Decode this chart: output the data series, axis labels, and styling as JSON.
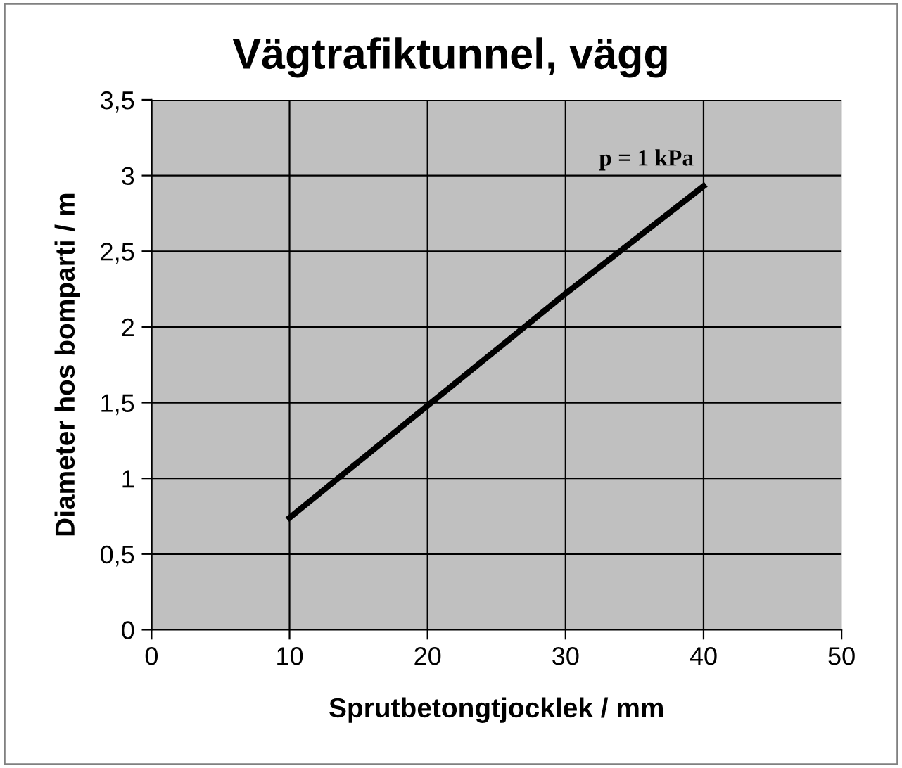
{
  "chart_data": {
    "type": "line",
    "title": "Vägtrafiktunnel, vägg",
    "xlabel": "Sprutbetongtjocklek / mm",
    "ylabel": "Diameter hos bomparti / m",
    "x": [
      10,
      20,
      30,
      40
    ],
    "series": [
      {
        "color": "#000000",
        "values": [
          0.74,
          1.48,
          2.22,
          2.93
        ]
      }
    ],
    "xlim": [
      0,
      50
    ],
    "xticks": [
      0,
      10,
      20,
      30,
      40,
      50
    ],
    "ylim": [
      0,
      3.5
    ],
    "yticks": [
      {
        "value": 0,
        "label": "0"
      },
      {
        "value": 0.5,
        "label": "0,5"
      },
      {
        "value": 1,
        "label": "1"
      },
      {
        "value": 1.5,
        "label": "1,5"
      },
      {
        "value": 2,
        "label": "2"
      },
      {
        "value": 2.5,
        "label": "2,5"
      },
      {
        "value": 3,
        "label": "3"
      },
      {
        "value": 3.5,
        "label": "3,5"
      }
    ],
    "grid": true,
    "legend": false,
    "marker": "none",
    "line_style": "solid",
    "annotations": [
      {
        "text": "p = 1 kPa",
        "x": 40,
        "y": 2.93
      }
    ]
  }
}
